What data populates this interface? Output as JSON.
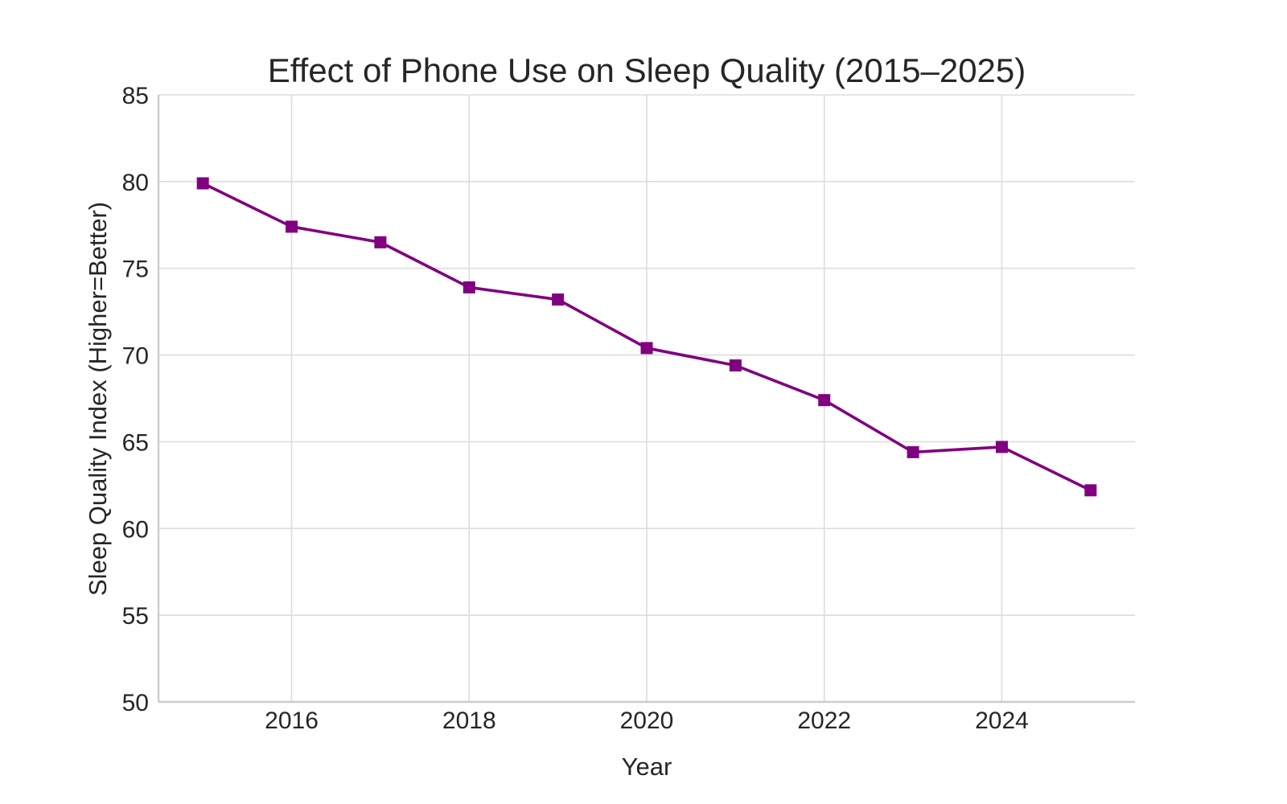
{
  "chart_data": {
    "type": "line",
    "title": "Effect of Phone Use on Sleep Quality (2015–2025)",
    "xlabel": "Year",
    "ylabel": "Sleep Quality Index (Higher=Better)",
    "x": [
      2015,
      2016,
      2017,
      2018,
      2019,
      2020,
      2021,
      2022,
      2023,
      2024,
      2025
    ],
    "series": [
      {
        "values": [
          79.9,
          77.4,
          76.5,
          73.9,
          73.2,
          70.4,
          69.4,
          67.4,
          64.4,
          64.7,
          62.2
        ],
        "color": "#800080",
        "marker": "square"
      }
    ],
    "xlim": [
      2014.5,
      2025.5
    ],
    "ylim": [
      50,
      85
    ],
    "xticks": [
      2016,
      2018,
      2020,
      2022,
      2024
    ],
    "yticks": [
      50,
      55,
      60,
      65,
      70,
      75,
      80,
      85
    ],
    "grid": true,
    "legend": "none"
  }
}
